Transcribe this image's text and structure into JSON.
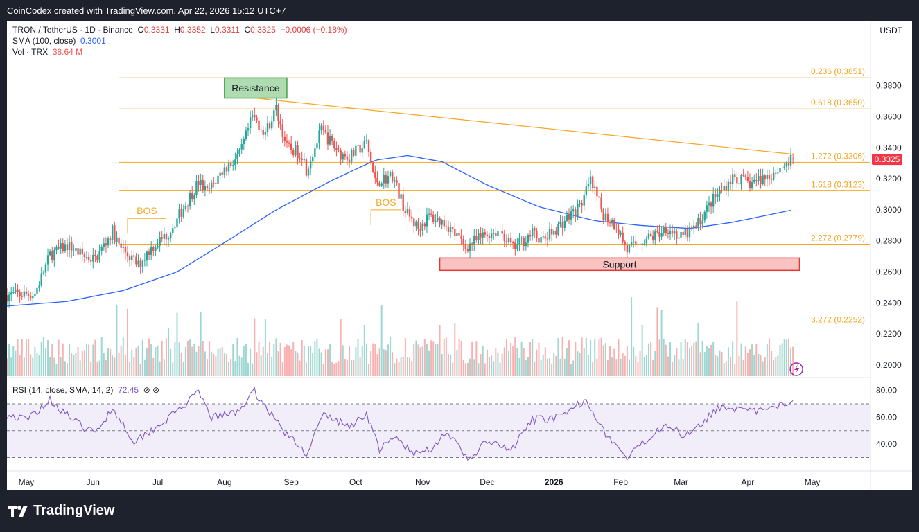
{
  "header": {
    "caption": "CoinCodex created with TradingView.com, Apr 22, 2026 15:12 UTC+7"
  },
  "legend": {
    "symbol": "TRON / TetherUS · 1D · Binance",
    "ohlc": [
      {
        "k": "O",
        "v": "0.3331"
      },
      {
        "k": "H",
        "v": "0.3352"
      },
      {
        "k": "L",
        "v": "0.3311"
      },
      {
        "k": "C",
        "v": "0.3325"
      }
    ],
    "change": "−0.0006 (−0.18%)",
    "sma_label": "SMA (100, close)",
    "sma_value": "0.3001",
    "vol_label": "Vol · TRX",
    "vol_value": "38.64 M",
    "rsi_label": "RSI (14, close, SMA, 14, 2)",
    "rsi_value": "72.45",
    "rsi_icons": "⊘ ⊘"
  },
  "currency": "USDT",
  "price_badge": "0.3325",
  "footer": {
    "brand": "TradingView"
  },
  "colors": {
    "up": "#26a69a",
    "down": "#ef5350",
    "sma": "#2962ff",
    "fib": "#f5a623",
    "rsi": "#7e57c2"
  },
  "chart_data": {
    "type": "candlestick",
    "ylim": [
      0.196,
      0.395
    ],
    "y_ticks": [
      "0.3800",
      "0.3600",
      "0.3400",
      "0.3200",
      "0.3000",
      "0.2800",
      "0.2600",
      "0.2400",
      "0.2200",
      "0.2000"
    ],
    "y_tick_values": [
      0.38,
      0.36,
      0.34,
      0.32,
      0.3,
      0.28,
      0.26,
      0.24,
      0.22,
      0.2
    ],
    "x_ticks": [
      {
        "label": "May",
        "bold": false
      },
      {
        "label": "Jun",
        "bold": false
      },
      {
        "label": "Jul",
        "bold": false
      },
      {
        "label": "Aug",
        "bold": false
      },
      {
        "label": "Sep",
        "bold": false
      },
      {
        "label": "Oct",
        "bold": false
      },
      {
        "label": "Nov",
        "bold": false
      },
      {
        "label": "Dec",
        "bold": false
      },
      {
        "label": "2026",
        "bold": true
      },
      {
        "label": "Feb",
        "bold": false
      },
      {
        "label": "Mar",
        "bold": false
      },
      {
        "label": "Apr",
        "bold": false
      },
      {
        "label": "May",
        "bold": false
      }
    ],
    "fib_levels": [
      {
        "label": "0.236 (0.3851)",
        "value": 0.3851
      },
      {
        "label": "0.618 (0.3650)",
        "value": 0.365
      },
      {
        "label": "1.272 (0.3306)",
        "value": 0.3306
      },
      {
        "label": "1.618 (0.3123)",
        "value": 0.3123
      },
      {
        "label": "2.272 (0.2779)",
        "value": 0.2779
      },
      {
        "label": "3.272 (0.2252)",
        "value": 0.2252
      }
    ],
    "annotations": {
      "resistance": {
        "label": "Resistance",
        "from_price": 0.372,
        "to_price": 0.385,
        "from_date": "2025-08-01",
        "to_date": "2025-08-30"
      },
      "support": {
        "label": "Support",
        "from_price": 0.261,
        "to_price": 0.269,
        "from_date": "2025-11-09",
        "to_date": "2026-04-25"
      },
      "bos": [
        {
          "label": "BOS",
          "price": 0.2945,
          "from_date": "2025-06-17",
          "to_date": "2025-07-05"
        },
        {
          "label": "BOS",
          "price": 0.3,
          "from_date": "2025-10-08",
          "to_date": "2025-10-22"
        }
      ],
      "trendline": {
        "from_date": "2025-08-15",
        "from_price": 0.372,
        "to_date": "2026-04-22",
        "to_price": 0.3358
      }
    },
    "candle_path": [
      {
        "date": "2025-04-22",
        "price": 0.245
      },
      {
        "date": "2025-05-05",
        "price": 0.246
      },
      {
        "date": "2025-05-12",
        "price": 0.271
      },
      {
        "date": "2025-05-20",
        "price": 0.277
      },
      {
        "date": "2025-05-28",
        "price": 0.27
      },
      {
        "date": "2025-06-02",
        "price": 0.268
      },
      {
        "date": "2025-06-10",
        "price": 0.286
      },
      {
        "date": "2025-06-13",
        "price": 0.277
      },
      {
        "date": "2025-06-22",
        "price": 0.264
      },
      {
        "date": "2025-06-27",
        "price": 0.274
      },
      {
        "date": "2025-07-06",
        "price": 0.285
      },
      {
        "date": "2025-07-12",
        "price": 0.299
      },
      {
        "date": "2025-07-20",
        "price": 0.318
      },
      {
        "date": "2025-07-24",
        "price": 0.311
      },
      {
        "date": "2025-07-31",
        "price": 0.325
      },
      {
        "date": "2025-08-08",
        "price": 0.335
      },
      {
        "date": "2025-08-14",
        "price": 0.36
      },
      {
        "date": "2025-08-20",
        "price": 0.35
      },
      {
        "date": "2025-08-25",
        "price": 0.365
      },
      {
        "date": "2025-08-30",
        "price": 0.34
      },
      {
        "date": "2025-09-06",
        "price": 0.336
      },
      {
        "date": "2025-09-08",
        "price": 0.326
      },
      {
        "date": "2025-09-15",
        "price": 0.351
      },
      {
        "date": "2025-09-24",
        "price": 0.336
      },
      {
        "date": "2025-09-28",
        "price": 0.334
      },
      {
        "date": "2025-10-06",
        "price": 0.343
      },
      {
        "date": "2025-10-10",
        "price": 0.318
      },
      {
        "date": "2025-10-18",
        "price": 0.322
      },
      {
        "date": "2025-10-24",
        "price": 0.299
      },
      {
        "date": "2025-10-30",
        "price": 0.288
      },
      {
        "date": "2025-11-04",
        "price": 0.296
      },
      {
        "date": "2025-11-12",
        "price": 0.291
      },
      {
        "date": "2025-11-21",
        "price": 0.276
      },
      {
        "date": "2025-11-30",
        "price": 0.284
      },
      {
        "date": "2025-12-07",
        "price": 0.287
      },
      {
        "date": "2025-12-13",
        "price": 0.275
      },
      {
        "date": "2025-12-22",
        "price": 0.285
      },
      {
        "date": "2025-12-27",
        "price": 0.28
      },
      {
        "date": "2026-01-05",
        "price": 0.292
      },
      {
        "date": "2026-01-13",
        "price": 0.302
      },
      {
        "date": "2026-01-18",
        "price": 0.318
      },
      {
        "date": "2026-01-24",
        "price": 0.297
      },
      {
        "date": "2026-01-30",
        "price": 0.29
      },
      {
        "date": "2026-02-04",
        "price": 0.274
      },
      {
        "date": "2026-02-10",
        "price": 0.28
      },
      {
        "date": "2026-02-18",
        "price": 0.284
      },
      {
        "date": "2026-02-22",
        "price": 0.289
      },
      {
        "date": "2026-03-01",
        "price": 0.282
      },
      {
        "date": "2026-03-08",
        "price": 0.289
      },
      {
        "date": "2026-03-15",
        "price": 0.305
      },
      {
        "date": "2026-03-25",
        "price": 0.321
      },
      {
        "date": "2026-04-02",
        "price": 0.317
      },
      {
        "date": "2026-04-12",
        "price": 0.323
      },
      {
        "date": "2026-04-22",
        "price": 0.3325
      }
    ],
    "sma_path": [
      {
        "date": "2025-04-22",
        "price": 0.238
      },
      {
        "date": "2025-05-20",
        "price": 0.241
      },
      {
        "date": "2025-06-15",
        "price": 0.248
      },
      {
        "date": "2025-07-10",
        "price": 0.26
      },
      {
        "date": "2025-07-31",
        "price": 0.278
      },
      {
        "date": "2025-08-25",
        "price": 0.3
      },
      {
        "date": "2025-09-20",
        "price": 0.319
      },
      {
        "date": "2025-10-10",
        "price": 0.332
      },
      {
        "date": "2025-10-25",
        "price": 0.335
      },
      {
        "date": "2025-11-10",
        "price": 0.331
      },
      {
        "date": "2025-12-01",
        "price": 0.316
      },
      {
        "date": "2025-12-25",
        "price": 0.302
      },
      {
        "date": "2026-01-20",
        "price": 0.293
      },
      {
        "date": "2026-02-10",
        "price": 0.29
      },
      {
        "date": "2026-03-05",
        "price": 0.288
      },
      {
        "date": "2026-03-25",
        "price": 0.292
      },
      {
        "date": "2026-04-22",
        "price": 0.3
      }
    ],
    "volume_ylim": [
      0,
      60
    ],
    "volume_unit": "M TRX",
    "rsi_ylim": [
      22,
      85
    ],
    "rsi_ticks": [
      "80.00",
      "60.00",
      "40.00"
    ],
    "rsi_tick_values": [
      80,
      60,
      40
    ],
    "rsi_band": [
      30,
      70
    ],
    "rsi_path": [
      {
        "date": "2025-04-22",
        "price": 62
      },
      {
        "date": "2025-05-01",
        "price": 58
      },
      {
        "date": "2025-05-12",
        "price": 73
      },
      {
        "date": "2025-05-25",
        "price": 55
      },
      {
        "date": "2025-06-02",
        "price": 48
      },
      {
        "date": "2025-06-10",
        "price": 67
      },
      {
        "date": "2025-06-20",
        "price": 42
      },
      {
        "date": "2025-07-05",
        "price": 58
      },
      {
        "date": "2025-07-20",
        "price": 78
      },
      {
        "date": "2025-07-26",
        "price": 60
      },
      {
        "date": "2025-08-06",
        "price": 63
      },
      {
        "date": "2025-08-15",
        "price": 79
      },
      {
        "date": "2025-08-22",
        "price": 64
      },
      {
        "date": "2025-08-30",
        "price": 47
      },
      {
        "date": "2025-09-08",
        "price": 33
      },
      {
        "date": "2025-09-16",
        "price": 62
      },
      {
        "date": "2025-09-28",
        "price": 53
      },
      {
        "date": "2025-10-06",
        "price": 63
      },
      {
        "date": "2025-10-12",
        "price": 36
      },
      {
        "date": "2025-10-20",
        "price": 45
      },
      {
        "date": "2025-10-28",
        "price": 32
      },
      {
        "date": "2025-11-06",
        "price": 38
      },
      {
        "date": "2025-11-12",
        "price": 50
      },
      {
        "date": "2025-11-22",
        "price": 28
      },
      {
        "date": "2025-12-01",
        "price": 42
      },
      {
        "date": "2025-12-12",
        "price": 35
      },
      {
        "date": "2025-12-22",
        "price": 58
      },
      {
        "date": "2026-01-05",
        "price": 60
      },
      {
        "date": "2026-01-16",
        "price": 74
      },
      {
        "date": "2026-01-24",
        "price": 50
      },
      {
        "date": "2026-02-04",
        "price": 29
      },
      {
        "date": "2026-02-12",
        "price": 42
      },
      {
        "date": "2026-02-22",
        "price": 56
      },
      {
        "date": "2026-03-02",
        "price": 46
      },
      {
        "date": "2026-03-12",
        "price": 58
      },
      {
        "date": "2026-03-20",
        "price": 69
      },
      {
        "date": "2026-04-01",
        "price": 64
      },
      {
        "date": "2026-04-12",
        "price": 66
      },
      {
        "date": "2026-04-22",
        "price": 72.45
      }
    ]
  }
}
